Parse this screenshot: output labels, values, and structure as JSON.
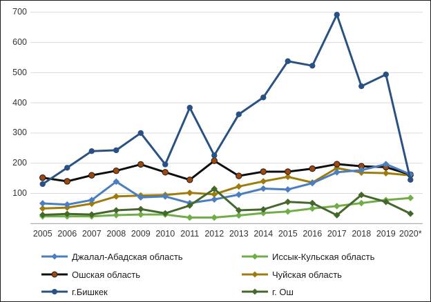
{
  "chart_data": {
    "type": "line",
    "title": "",
    "xlabel": "",
    "ylabel": "",
    "x": [
      "2005",
      "2006",
      "2007",
      "2008",
      "2009",
      "2010",
      "2011",
      "2012",
      "2013",
      "2014",
      "2015",
      "2016",
      "2017",
      "2018",
      "2019",
      "2020*"
    ],
    "y_ticks": [
      700,
      600,
      500,
      400,
      300,
      200,
      100
    ],
    "ylim": [
      0,
      700
    ],
    "grid": true,
    "background": "#ffffff",
    "grid_color": "#d9d9d9",
    "axis_line_color": "#a6a6a6",
    "tick_label_color": "#333333",
    "legend_position": "bottom",
    "legend_columns": [
      [
        0,
        2,
        4
      ],
      [
        1,
        3,
        5
      ]
    ],
    "series": [
      {
        "name": "Джалал-Абадская область",
        "color": "#4a7ebf",
        "marker": "diamond",
        "values": [
          67,
          63,
          78,
          139,
          87,
          90,
          68,
          80,
          96,
          116,
          113,
          134,
          170,
          177,
          197,
          163
        ]
      },
      {
        "name": "Иссык-Кульская область",
        "color": "#70ad47",
        "marker": "diamond",
        "values": [
          24,
          24,
          24,
          28,
          30,
          30,
          20,
          20,
          27,
          35,
          40,
          50,
          58,
          68,
          78,
          85
        ]
      },
      {
        "name": "Ошская область",
        "color": "#0d0d0d",
        "marker": "circle",
        "marker_color": "#9e480e",
        "marker_stroke": "#1a1a1a",
        "values": [
          152,
          140,
          160,
          175,
          196,
          170,
          145,
          208,
          158,
          172,
          172,
          182,
          197,
          190,
          187,
          162
        ]
      },
      {
        "name": "Чуйская область",
        "color": "#9e7c0c",
        "marker": "diamond",
        "values": [
          50,
          53,
          66,
          90,
          93,
          95,
          102,
          97,
          123,
          140,
          155,
          136,
          184,
          169,
          167,
          160
        ]
      },
      {
        "name": "г.Бишкек",
        "color": "#2a5183",
        "marker": "circle",
        "marker_color": "#2a5183",
        "values": [
          131,
          185,
          240,
          243,
          300,
          196,
          384,
          226,
          362,
          418,
          538,
          523,
          692,
          455,
          494,
          145
        ]
      },
      {
        "name": "г. Ош",
        "color": "#44672b",
        "marker": "diamond",
        "values": [
          29,
          32,
          30,
          44,
          48,
          34,
          60,
          115,
          44,
          47,
          72,
          68,
          28,
          95,
          72,
          33
        ]
      }
    ]
  }
}
